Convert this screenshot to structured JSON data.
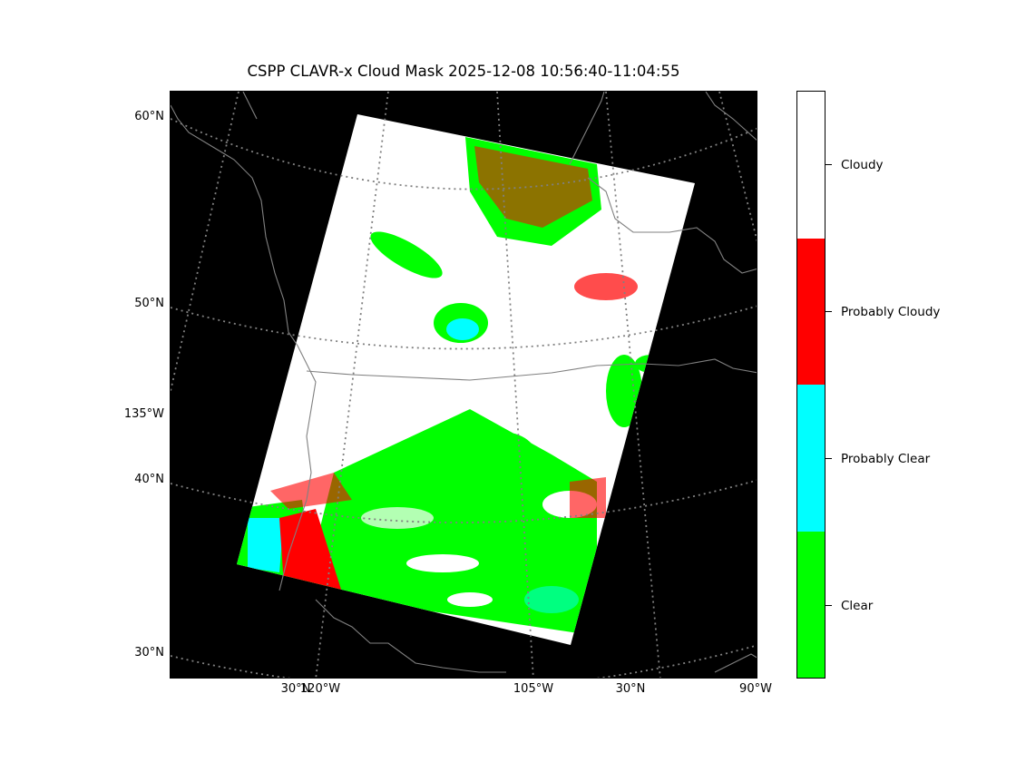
{
  "title": "CSPP CLAVR-x Cloud Mask 2025-12-08 10:56:40-11:04:55",
  "lat_labels": [
    "60°N",
    "50°N",
    "135°W",
    "40°N",
    "30°N"
  ],
  "lon_labels": [
    "30°N",
    "120°W",
    "105°W",
    "30°N",
    "90°W"
  ],
  "colorbar": {
    "categories": [
      "Cloudy",
      "Probably Cloudy",
      "Probably Clear",
      "Clear"
    ],
    "colors": [
      "#ffffff",
      "#ff0000",
      "#00ffff",
      "#00ff00"
    ]
  },
  "colors": {
    "background": "#000000",
    "coastline": "#808080",
    "gridline": "#808080"
  }
}
